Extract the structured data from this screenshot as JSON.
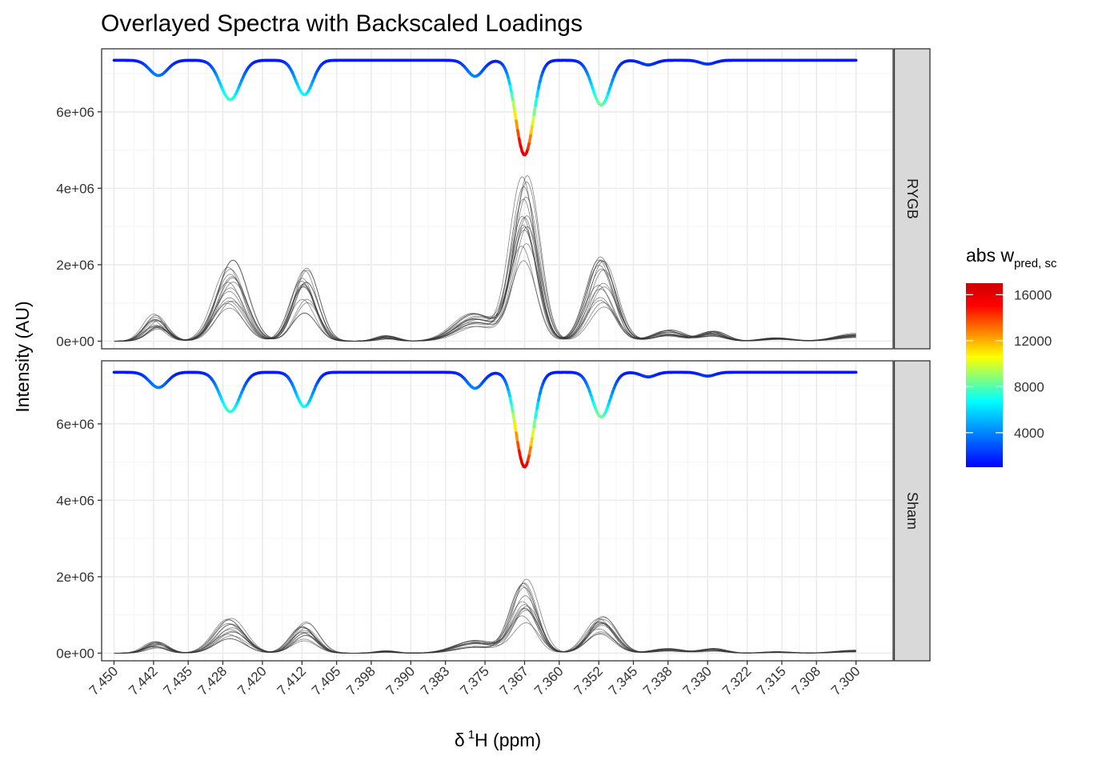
{
  "chart_data": {
    "type": "line",
    "title": "Overlayed Spectra with Backscaled Loadings",
    "xlabel": {
      "delta": "δ",
      "sup": "1",
      "rest": "H (ppm)"
    },
    "ylabel": "Intensity (AU)",
    "xlim": [
      7.4525,
      7.2925
    ],
    "x_reversed": true,
    "ylim": [
      -200000,
      7650000
    ],
    "x_ticks": [
      7.45,
      7.442,
      7.435,
      7.428,
      7.42,
      7.412,
      7.405,
      7.398,
      7.39,
      7.383,
      7.375,
      7.367,
      7.36,
      7.352,
      7.345,
      7.338,
      7.33,
      7.322,
      7.315,
      7.308,
      7.3
    ],
    "x_tick_labels": [
      "7.450",
      "7.442",
      "7.435",
      "7.428",
      "7.420",
      "7.412",
      "7.405",
      "7.398",
      "7.390",
      "7.383",
      "7.375",
      "7.367",
      "7.360",
      "7.352",
      "7.345",
      "7.338",
      "7.330",
      "7.322",
      "7.315",
      "7.308",
      "7.300"
    ],
    "y_ticks": [
      0,
      2000000,
      4000000,
      6000000
    ],
    "y_tick_labels": [
      "0e+00",
      "2e+06",
      "4e+06",
      "6e+06"
    ],
    "grid": true,
    "panels": [
      {
        "label": "RYGB",
        "n_spectra": 16,
        "scale": 1.0
      },
      {
        "label": "Sham",
        "n_spectra": 14,
        "scale": 0.42
      }
    ],
    "spectral_peaks": [
      {
        "ppm": 7.4415,
        "height": 0.48,
        "width": 0.0022
      },
      {
        "ppm": 7.4265,
        "height": 1.55,
        "width": 0.003
      },
      {
        "ppm": 7.4115,
        "height": 1.3,
        "width": 0.0025
      },
      {
        "ppm": 7.395,
        "height": 0.1,
        "width": 0.002
      },
      {
        "ppm": 7.377,
        "height": 0.6,
        "width": 0.004
      },
      {
        "ppm": 7.367,
        "height": 3.1,
        "width": 0.0026
      },
      {
        "ppm": 7.3515,
        "height": 1.6,
        "width": 0.0028
      },
      {
        "ppm": 7.338,
        "height": 0.2,
        "width": 0.003
      },
      {
        "ppm": 7.329,
        "height": 0.2,
        "width": 0.0025
      },
      {
        "ppm": 7.316,
        "height": 0.06,
        "width": 0.003
      },
      {
        "ppm": 7.3,
        "height": 0.14,
        "width": 0.004
      }
    ],
    "loadings_curve": {
      "baseline": 7350000,
      "dips": [
        {
          "ppm": 7.441,
          "depth": 400000,
          "width": 0.0018
        },
        {
          "ppm": 7.4265,
          "depth": 1030000,
          "width": 0.002
        },
        {
          "ppm": 7.4115,
          "depth": 900000,
          "width": 0.0017
        },
        {
          "ppm": 7.377,
          "depth": 420000,
          "width": 0.0016
        },
        {
          "ppm": 7.367,
          "depth": 2480000,
          "width": 0.0018
        },
        {
          "ppm": 7.3515,
          "depth": 1170000,
          "width": 0.0018
        },
        {
          "ppm": 7.342,
          "depth": 120000,
          "width": 0.0015
        },
        {
          "ppm": 7.33,
          "depth": 100000,
          "width": 0.0015
        }
      ]
    },
    "legend": {
      "title_main": "abs w",
      "title_sub": "pred, sc",
      "placement": "right",
      "range": [
        1000,
        17000
      ],
      "ticks": [
        4000,
        8000,
        12000,
        16000
      ],
      "tick_labels": [
        "4000",
        "8000",
        "12000",
        "16000"
      ],
      "colors": [
        "#0000FF",
        "#00FFFF",
        "#FFFF00",
        "#FF0000",
        "#CC0000"
      ]
    },
    "colors": {
      "spectra": "#333333",
      "panel_border": "#333333",
      "strip_fill": "#D9D9D9",
      "grid_major": "#EBEBEB",
      "grid_minor": "#F5F5F5"
    }
  }
}
